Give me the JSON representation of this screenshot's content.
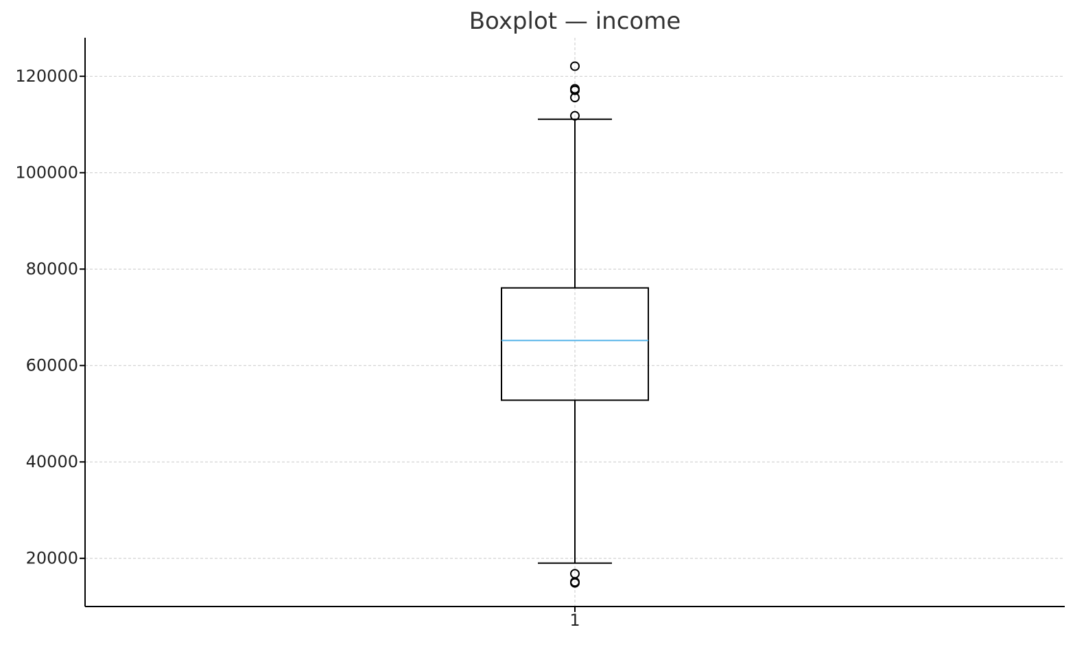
{
  "chart_data": {
    "type": "box",
    "title": "Boxplot — income",
    "xlabel": "",
    "ylabel": "",
    "categories": [
      "1"
    ],
    "ylim": [
      10000,
      128000
    ],
    "yticks": [
      20000,
      40000,
      60000,
      80000,
      100000,
      120000
    ],
    "ytick_labels": [
      "20000",
      "40000",
      "60000",
      "80000",
      "100000",
      "120000"
    ],
    "grid": true,
    "boxes": [
      {
        "category": "1",
        "whisker_low": 19000,
        "q1": 52800,
        "median": 65200,
        "q3": 76100,
        "whisker_high": 111100,
        "outliers": [
          122100,
          117400,
          117100,
          115600,
          111800,
          16800,
          15100,
          14900
        ]
      }
    ],
    "colors": {
      "median": "#56b4e9",
      "box": "#000000",
      "grid": "#c8c8c8"
    }
  }
}
